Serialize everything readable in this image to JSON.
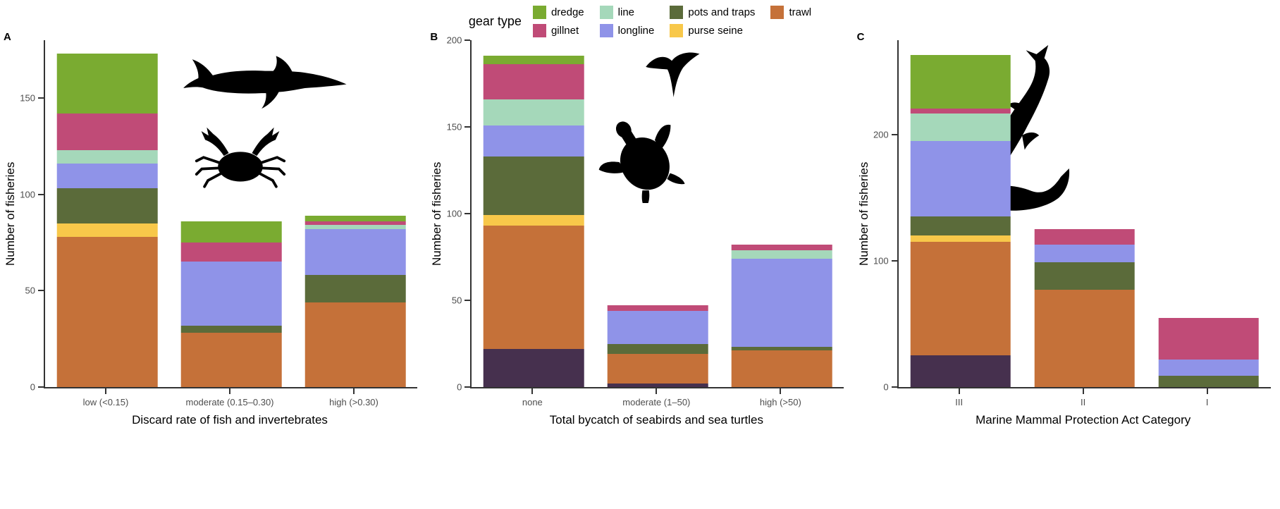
{
  "legend": {
    "title": "gear type",
    "items": [
      {
        "label": "dredge",
        "color": "#7aab31"
      },
      {
        "label": "gillnet",
        "color": "#c04b77"
      },
      {
        "label": "line",
        "color": "#a5d8ba"
      },
      {
        "label": "longline",
        "color": "#8f93e8"
      },
      {
        "label": "pots and traps",
        "color": "#5b6b3a"
      },
      {
        "label": "purse seine",
        "color": "#f8c84a"
      },
      {
        "label": "trawl",
        "color": "#c57139"
      }
    ]
  },
  "colors": {
    "axis_line": "#333333",
    "tick_text": "#4d4d4d",
    "unlabeled_segment": "#46304e",
    "silhouette": "#000000"
  },
  "chart_data": [
    {
      "type": "bar",
      "stacked": true,
      "panel_label": "A",
      "ylabel": "Number of fisheries",
      "xlabel": "Discard rate of fish and invertebrates",
      "ylim": [
        0,
        180
      ],
      "yticks": [
        0,
        50,
        100,
        150
      ],
      "grid": false,
      "legend_position": "top-center (shared)",
      "categories": [
        "low (<0.15)",
        "moderate (0.15–0.30)",
        "high (>0.30)"
      ],
      "series": [
        {
          "name": "unlabeled dark purple",
          "color": "#46304e",
          "values": [
            0,
            0,
            0
          ]
        },
        {
          "name": "trawl",
          "color": "#c57139",
          "values": [
            78,
            28,
            44
          ]
        },
        {
          "name": "purse seine",
          "color": "#f8c84a",
          "values": [
            7,
            0,
            0
          ]
        },
        {
          "name": "pots and traps",
          "color": "#5b6b3a",
          "values": [
            18,
            4,
            14
          ]
        },
        {
          "name": "longline",
          "color": "#8f93e8",
          "values": [
            13,
            33,
            24
          ]
        },
        {
          "name": "line",
          "color": "#a5d8ba",
          "values": [
            7,
            0,
            2
          ]
        },
        {
          "name": "gillnet",
          "color": "#c04b77",
          "values": [
            19,
            10,
            2
          ]
        },
        {
          "name": "dredge",
          "color": "#7aab31",
          "values": [
            31,
            11,
            3
          ]
        }
      ],
      "totals": [
        173,
        86,
        89
      ],
      "annotations": [
        "shark silhouette",
        "crab silhouette"
      ]
    },
    {
      "type": "bar",
      "stacked": true,
      "panel_label": "B",
      "ylabel": "Number of fisheries",
      "xlabel": "Total bycatch of seabirds and sea turtles",
      "ylim": [
        0,
        200
      ],
      "yticks": [
        0,
        50,
        100,
        150,
        200
      ],
      "grid": false,
      "legend_position": "top-center (shared)",
      "categories": [
        "none",
        "moderate (1–50)",
        "high (>50)"
      ],
      "series": [
        {
          "name": "unlabeled dark purple",
          "color": "#46304e",
          "values": [
            22,
            2,
            0
          ]
        },
        {
          "name": "trawl",
          "color": "#c57139",
          "values": [
            71,
            17,
            21
          ]
        },
        {
          "name": "purse seine",
          "color": "#f8c84a",
          "values": [
            6,
            0,
            0
          ]
        },
        {
          "name": "pots and traps",
          "color": "#5b6b3a",
          "values": [
            34,
            6,
            2
          ]
        },
        {
          "name": "longline",
          "color": "#8f93e8",
          "values": [
            18,
            19,
            51
          ]
        },
        {
          "name": "line",
          "color": "#a5d8ba",
          "values": [
            15,
            0,
            5
          ]
        },
        {
          "name": "gillnet",
          "color": "#c04b77",
          "values": [
            20,
            3,
            3
          ]
        },
        {
          "name": "dredge",
          "color": "#7aab31",
          "values": [
            5,
            0,
            0
          ]
        }
      ],
      "totals": [
        191,
        47,
        82
      ],
      "annotations": [
        "seabird silhouette",
        "sea turtle silhouette"
      ]
    },
    {
      "type": "bar",
      "stacked": true,
      "panel_label": "C",
      "ylabel": "Number of fisheries",
      "xlabel": "Marine Mammal Protection Act Category",
      "ylim": [
        0,
        275
      ],
      "yticks": [
        0,
        100,
        200
      ],
      "grid": false,
      "legend_position": "top-center (shared)",
      "categories": [
        "III",
        "II",
        "I"
      ],
      "series": [
        {
          "name": "unlabeled dark purple",
          "color": "#46304e",
          "values": [
            25,
            0,
            0
          ]
        },
        {
          "name": "trawl",
          "color": "#c57139",
          "values": [
            90,
            77,
            0
          ]
        },
        {
          "name": "purse seine",
          "color": "#f8c84a",
          "values": [
            5,
            0,
            0
          ]
        },
        {
          "name": "pots and traps",
          "color": "#5b6b3a",
          "values": [
            15,
            22,
            9
          ]
        },
        {
          "name": "longline",
          "color": "#8f93e8",
          "values": [
            60,
            14,
            13
          ]
        },
        {
          "name": "line",
          "color": "#a5d8ba",
          "values": [
            22,
            0,
            0
          ]
        },
        {
          "name": "gillnet",
          "color": "#c04b77",
          "values": [
            4,
            12,
            33
          ]
        },
        {
          "name": "dredge",
          "color": "#7aab31",
          "values": [
            42,
            0,
            0
          ]
        }
      ],
      "totals": [
        263,
        125,
        55
      ],
      "annotations": [
        "dolphin silhouette",
        "seal silhouette"
      ]
    }
  ]
}
